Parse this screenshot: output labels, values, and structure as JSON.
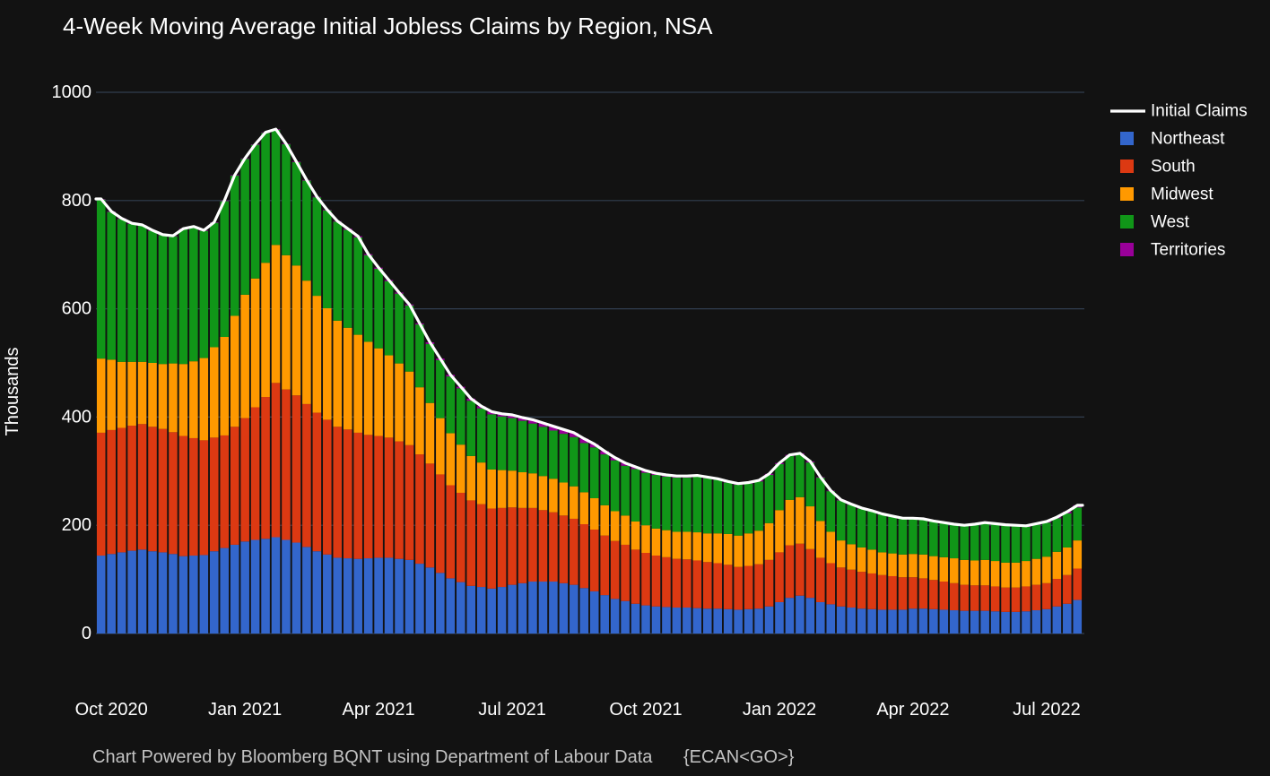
{
  "title": "4-Week Moving Average Initial Jobless Claims by Region, NSA",
  "footer": {
    "text": "Chart Powered by Bloomberg BQNT using Department of Labour Data",
    "code": "{ECAN<GO>}"
  },
  "y_axis": {
    "label": "Thousands",
    "ticks": [
      0,
      200,
      400,
      600,
      800,
      1000
    ]
  },
  "x_axis": {
    "tick_labels": [
      "Oct 2020",
      "Jan 2021",
      "Apr 2021",
      "Jul 2021",
      "Oct 2021",
      "Jan 2022",
      "Apr 2022",
      "Jul 2022"
    ],
    "tick_indices": [
      1,
      14,
      27,
      40,
      53,
      66,
      79,
      92
    ]
  },
  "legend": {
    "items": [
      {
        "label": "Initial Claims",
        "type": "line",
        "color": "#ffffff"
      },
      {
        "label": "Northeast",
        "type": "box",
        "color": "#3366cc"
      },
      {
        "label": "South",
        "type": "box",
        "color": "#dc3912"
      },
      {
        "label": "Midwest",
        "type": "box",
        "color": "#ff9900"
      },
      {
        "label": "West",
        "type": "box",
        "color": "#109618"
      },
      {
        "label": "Territories",
        "type": "box",
        "color": "#990099"
      }
    ]
  },
  "colors": {
    "background": "#121212",
    "gridline": "#37465a",
    "line": "#ffffff",
    "text": "#ffffff",
    "footer_text": "#c2c2c2"
  },
  "chart_data": {
    "type": "bar",
    "subtype": "stacked-weekly-bars-with-total-line",
    "title": "4-Week Moving Average Initial Jobless Claims by Region, NSA",
    "xlabel": "",
    "ylabel": "Thousands",
    "ylim": [
      0,
      1000
    ],
    "grid": true,
    "legend_position": "right",
    "n_points": 96,
    "point_interval": "weekly",
    "x_tick_labels": [
      "Oct 2020",
      "Jan 2021",
      "Apr 2021",
      "Jul 2021",
      "Oct 2021",
      "Jan 2022",
      "Apr 2022",
      "Jul 2022"
    ],
    "x_tick_indices": [
      1,
      14,
      27,
      40,
      53,
      66,
      79,
      92
    ],
    "line_overlay": {
      "name": "Initial Claims",
      "color": "#ffffff",
      "values_equal_stacked_total": true
    },
    "series": [
      {
        "name": "Northeast",
        "color": "#3366cc",
        "values": [
          144,
          147,
          150,
          153,
          155,
          152,
          150,
          147,
          143,
          144,
          145,
          152,
          158,
          164,
          170,
          173,
          175,
          178,
          173,
          168,
          160,
          152,
          146,
          140,
          139,
          138,
          139,
          140,
          140,
          138,
          136,
          129,
          122,
          112,
          102,
          95,
          88,
          86,
          83,
          86,
          90,
          93,
          96,
          96,
          96,
          93,
          90,
          84,
          78,
          71,
          64,
          60,
          55,
          52,
          50,
          49,
          48,
          48,
          47,
          46,
          46,
          45,
          44,
          45,
          46,
          50,
          58,
          66,
          70,
          66,
          58,
          54,
          50,
          48,
          46,
          45,
          44,
          44,
          44,
          46,
          46,
          45,
          44,
          43,
          42,
          42,
          42,
          41,
          40,
          40,
          41,
          43,
          45,
          50,
          55,
          62
        ]
      },
      {
        "name": "South",
        "color": "#dc3912",
        "values": [
          227,
          229,
          230,
          231,
          232,
          230,
          228,
          225,
          222,
          217,
          212,
          210,
          208,
          218,
          228,
          245,
          262,
          285,
          278,
          272,
          264,
          256,
          249,
          242,
          238,
          233,
          228,
          225,
          222,
          217,
          212,
          202,
          192,
          182,
          172,
          165,
          158,
          153,
          148,
          146,
          143,
          139,
          136,
          132,
          128,
          125,
          122,
          118,
          114,
          110,
          107,
          104,
          100,
          97,
          94,
          92,
          90,
          89,
          88,
          86,
          84,
          82,
          79,
          80,
          82,
          86,
          92,
          97,
          96,
          90,
          82,
          76,
          72,
          70,
          68,
          66,
          64,
          62,
          60,
          58,
          56,
          54,
          52,
          50,
          48,
          47,
          47,
          46,
          45,
          45,
          46,
          47,
          48,
          51,
          53,
          58
        ]
      },
      {
        "name": "Midwest",
        "color": "#ff9900",
        "values": [
          137,
          130,
          122,
          118,
          115,
          118,
          120,
          127,
          133,
          142,
          152,
          167,
          182,
          205,
          228,
          238,
          248,
          255,
          248,
          240,
          228,
          216,
          206,
          196,
          188,
          181,
          172,
          162,
          152,
          144,
          136,
          124,
          112,
          104,
          96,
          89,
          82,
          77,
          72,
          70,
          68,
          66,
          64,
          63,
          62,
          61,
          60,
          59,
          58,
          56,
          55,
          54,
          52,
          51,
          50,
          50,
          50,
          51,
          52,
          53,
          55,
          57,
          58,
          60,
          62,
          68,
          78,
          84,
          86,
          79,
          68,
          58,
          50,
          47,
          45,
          44,
          42,
          42,
          42,
          43,
          44,
          44,
          45,
          46,
          46,
          46,
          47,
          47,
          46,
          46,
          47,
          48,
          49,
          50,
          51,
          52
        ]
      },
      {
        "name": "West",
        "color": "#109618",
        "values": [
          294,
          273,
          264,
          255,
          252,
          244,
          238,
          235,
          249,
          248,
          235,
          230,
          251,
          259,
          251,
          247,
          240,
          213,
          205,
          191,
          185,
          182,
          181,
          183,
          181,
          180,
          160,
          147,
          137,
          129,
          122,
          116,
          109,
          107,
          105,
          104,
          102,
          100,
          102,
          99,
          97,
          95,
          92,
          91,
          89,
          90,
          91,
          91,
          94,
          94,
          94,
          92,
          97,
          97,
          99,
          99,
          100,
          100,
          103,
          102,
          99,
          95,
          94,
          92,
          91,
          89,
          85,
          81,
          79,
          81,
          80,
          75,
          74,
          73,
          72,
          71,
          70,
          68,
          66,
          65,
          65,
          64,
          63,
          62,
          63,
          66,
          68,
          68,
          69,
          68,
          63,
          63,
          63,
          62,
          63,
          61
        ]
      },
      {
        "name": "Territories",
        "color": "#990099",
        "values": [
          1,
          1,
          1,
          1,
          1,
          1,
          1,
          1,
          1,
          1,
          1,
          1,
          1,
          1,
          1,
          1,
          1,
          1,
          1,
          1,
          1,
          1,
          1,
          1,
          2,
          2,
          2,
          2,
          2,
          2,
          2,
          2,
          3,
          3,
          3,
          3,
          4,
          4,
          5,
          5,
          6,
          6,
          7,
          7,
          8,
          8,
          8,
          8,
          6,
          6,
          5,
          5,
          4,
          4,
          3,
          3,
          3,
          3,
          2,
          2,
          2,
          2,
          2,
          2,
          2,
          2,
          2,
          2,
          2,
          2,
          1,
          1,
          1,
          1,
          1,
          1,
          1,
          1,
          1,
          1,
          1,
          1,
          1,
          1,
          1,
          1,
          1,
          1,
          1,
          1,
          2,
          2,
          2,
          2,
          3,
          4
        ]
      }
    ]
  }
}
